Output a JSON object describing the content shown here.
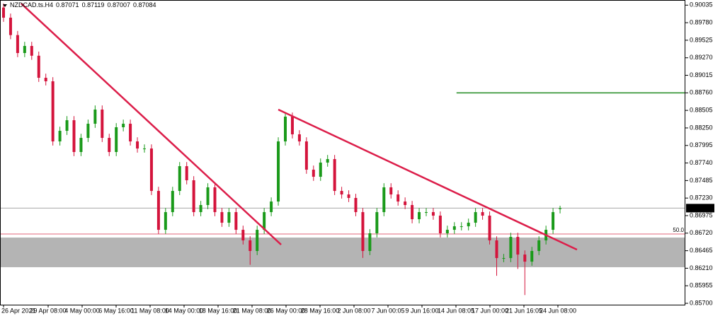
{
  "chart_data": {
    "type": "candlestick",
    "title": "NZDCAD.ts.H4",
    "open": [
      0.9,
      0.89853,
      0.896,
      0.89339,
      0.89442,
      0.893,
      0.88979,
      0.88928,
      0.88054,
      0.88208,
      0.88362,
      0.879,
      0.88105,
      0.88311,
      0.88517,
      0.88105,
      0.879,
      0.8826,
      0.88311,
      0.88054,
      0.87951,
      0.87951,
      0.87334,
      0.86769,
      0.87026,
      0.87334,
      0.87694,
      0.87489,
      0.87026,
      0.87129,
      0.87386,
      0.87026,
      0.86872,
      0.87026,
      0.86769,
      0.86615,
      0.86461,
      0.86769,
      0.87026,
      0.8718,
      0.88054,
      0.88414,
      0.88157,
      0.88054,
      0.87643,
      0.8754,
      0.87746,
      0.87797,
      0.87334,
      0.87283,
      0.87232,
      0.87026,
      0.86461,
      0.86718,
      0.87026,
      0.87386,
      0.87283,
      0.8718,
      0.87129,
      0.86923,
      0.87026,
      0.87026,
      0.86975,
      0.86718,
      0.86769,
      0.8682,
      0.8682,
      0.86872,
      0.87026,
      0.86975,
      0.86615,
      0.86358,
      0.86358,
      0.86666,
      0.86409,
      0.86306,
      0.86461,
      0.86615,
      0.86769,
      0.87071
    ],
    "high": [
      0.9006,
      0.89913,
      0.8966,
      0.89502,
      0.89502,
      0.8936,
      0.89039,
      0.88988,
      0.88268,
      0.88422,
      0.88422,
      0.88165,
      0.88371,
      0.88577,
      0.88577,
      0.88165,
      0.8832,
      0.88371,
      0.88371,
      0.88114,
      0.88011,
      0.88011,
      0.87394,
      0.87086,
      0.87394,
      0.87754,
      0.87754,
      0.87549,
      0.87189,
      0.87446,
      0.87446,
      0.87086,
      0.87086,
      0.87086,
      0.86829,
      0.86675,
      0.86829,
      0.87086,
      0.8724,
      0.88114,
      0.88474,
      0.88474,
      0.88217,
      0.88114,
      0.87703,
      0.87806,
      0.87857,
      0.87857,
      0.87394,
      0.87343,
      0.87292,
      0.87086,
      0.86778,
      0.87086,
      0.87446,
      0.87446,
      0.87343,
      0.8724,
      0.87189,
      0.87086,
      0.87086,
      0.87086,
      0.87035,
      0.86829,
      0.8688,
      0.8688,
      0.86932,
      0.87086,
      0.87086,
      0.87035,
      0.86675,
      0.86418,
      0.86726,
      0.86726,
      0.86469,
      0.86521,
      0.86675,
      0.86829,
      0.87086,
      0.87119
    ],
    "low": [
      0.89793,
      0.8954,
      0.89279,
      0.89279,
      0.8924,
      0.88919,
      0.88868,
      0.87994,
      0.87994,
      0.88148,
      0.8784,
      0.8784,
      0.88045,
      0.88251,
      0.88045,
      0.8784,
      0.8784,
      0.882,
      0.87994,
      0.87891,
      0.87891,
      0.87274,
      0.86709,
      0.86709,
      0.86966,
      0.87274,
      0.87429,
      0.86966,
      0.86966,
      0.87069,
      0.86966,
      0.86812,
      0.86812,
      0.86709,
      0.86555,
      0.8626,
      0.86401,
      0.86709,
      0.86966,
      0.8712,
      0.87994,
      0.88097,
      0.87994,
      0.87583,
      0.8748,
      0.8748,
      0.87686,
      0.87274,
      0.87223,
      0.87172,
      0.86966,
      0.8636,
      0.86401,
      0.86658,
      0.86966,
      0.87223,
      0.8712,
      0.87069,
      0.86863,
      0.86863,
      0.86966,
      0.86915,
      0.86658,
      0.86658,
      0.86709,
      0.8676,
      0.8676,
      0.86812,
      0.86915,
      0.86555,
      0.861,
      0.86298,
      0.86298,
      0.862,
      0.8582,
      0.86246,
      0.86401,
      0.86555,
      0.86709,
      0.87007
    ],
    "close": [
      0.89853,
      0.896,
      0.89339,
      0.89442,
      0.893,
      0.88979,
      0.88928,
      0.88054,
      0.88208,
      0.88362,
      0.879,
      0.88105,
      0.88311,
      0.88517,
      0.88105,
      0.879,
      0.8826,
      0.88311,
      0.88054,
      0.87951,
      0.87951,
      0.87334,
      0.86769,
      0.87026,
      0.87334,
      0.87694,
      0.87489,
      0.87026,
      0.87129,
      0.87386,
      0.87026,
      0.86872,
      0.87026,
      0.86769,
      0.86615,
      0.86461,
      0.86769,
      0.87026,
      0.8718,
      0.88054,
      0.88414,
      0.88157,
      0.88054,
      0.87643,
      0.8754,
      0.87746,
      0.87797,
      0.87334,
      0.87283,
      0.87232,
      0.87026,
      0.86461,
      0.86718,
      0.87026,
      0.87386,
      0.87283,
      0.8718,
      0.87129,
      0.86923,
      0.87026,
      0.87026,
      0.86975,
      0.86718,
      0.86769,
      0.8682,
      0.8682,
      0.86872,
      0.87026,
      0.86975,
      0.86615,
      0.86358,
      0.86358,
      0.86666,
      0.86409,
      0.86306,
      0.86461,
      0.86615,
      0.86769,
      0.87026,
      0.87084
    ],
    "up_color": "#1a9a1a",
    "down_color": "#d4143c",
    "ylim": [
      0.8568,
      0.9011
    ],
    "yticks": [
      0.90035,
      {
        "value": 0.8978,
        "label": "0.89780"
      },
      0.89525,
      {
        "value": 0.8927,
        "label": "0.89270"
      },
      0.89015,
      {
        "value": 0.8876,
        "label": "0.88760"
      },
      0.88505,
      {
        "value": 0.8825,
        "label": "0.88250"
      },
      0.87995,
      {
        "value": 0.8774,
        "label": "0.87740"
      },
      0.87485,
      {
        "value": 0.8723,
        "label": "0.87230"
      },
      0.86975,
      {
        "value": 0.8672,
        "label": "0.86720"
      },
      0.86465,
      {
        "value": 0.8621,
        "label": "0.86210"
      },
      0.85955,
      {
        "value": 0.857,
        "label": "0.85700"
      }
    ],
    "xticklabels": [
      "26 Apr 2021",
      "29 Apr 08:00",
      "4 May 00:00",
      "6 May 16:00",
      "11 May 08:00",
      "14 May 00:00",
      "18 May 16:00",
      "21 May 08:00",
      "26 May 00:00",
      "28 May 16:00",
      "2 Jun 08:00",
      "7 Jun 00:05",
      "9 Jun 16:00",
      "14 Jun 08:05",
      "17 Jun 00:00",
      "21 Jun 16:05",
      "24 Jun 08:00"
    ],
    "current_price": 0.87084,
    "zone": {
      "top": 0.86656,
      "bottom": 0.86225,
      "color": "#b4b4b4"
    },
    "fib_level": {
      "value": 0.86708,
      "label": "50.0",
      "color": "#e0667a"
    },
    "hline": {
      "value": 0.8876,
      "start": 64.3,
      "color": "#1f8a1f"
    },
    "trendlines": [
      {
        "start": [
          2.5,
          0.90059
        ],
        "end": [
          39.4,
          0.86553
        ],
        "color": "#dc1e4a"
      },
      {
        "start": [
          39.0,
          0.88517
        ],
        "end": [
          81.4,
          0.86481
        ],
        "color": "#dc1e4a"
      }
    ]
  }
}
